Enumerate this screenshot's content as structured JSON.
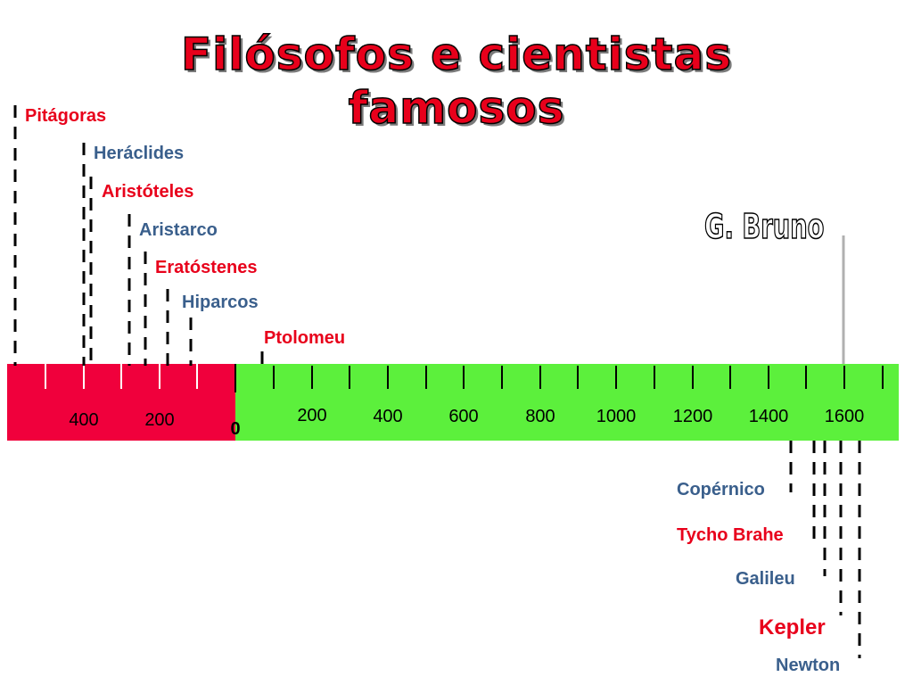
{
  "title": {
    "line1": "Filósofos e cientistas",
    "line2": "famosos"
  },
  "axis": {
    "bc_labels": [
      "400",
      "200"
    ],
    "zero_label": "0",
    "ad_labels": [
      "200",
      "400",
      "600",
      "800",
      "1000",
      "1200",
      "1400",
      "1600"
    ],
    "bc_color": "#f0003c",
    "ad_color": "#5cf03c"
  },
  "people_above": [
    {
      "name": "Pitágoras",
      "color": "red"
    },
    {
      "name": "Heráclides",
      "color": "blue"
    },
    {
      "name": "Aristóteles",
      "color": "red"
    },
    {
      "name": "Aristarco",
      "color": "blue"
    },
    {
      "name": "Eratóstenes",
      "color": "red"
    },
    {
      "name": "Hiparcos",
      "color": "blue"
    },
    {
      "name": "Ptolomeu",
      "color": "red"
    }
  ],
  "people_below": [
    {
      "name": "Copérnico",
      "color": "blue"
    },
    {
      "name": "Tycho Brahe",
      "color": "red"
    },
    {
      "name": "Galileu",
      "color": "blue"
    },
    {
      "name": "Kepler",
      "color": "red"
    },
    {
      "name": "Newton",
      "color": "blue"
    }
  ],
  "highlight": {
    "name": "G. Bruno"
  }
}
